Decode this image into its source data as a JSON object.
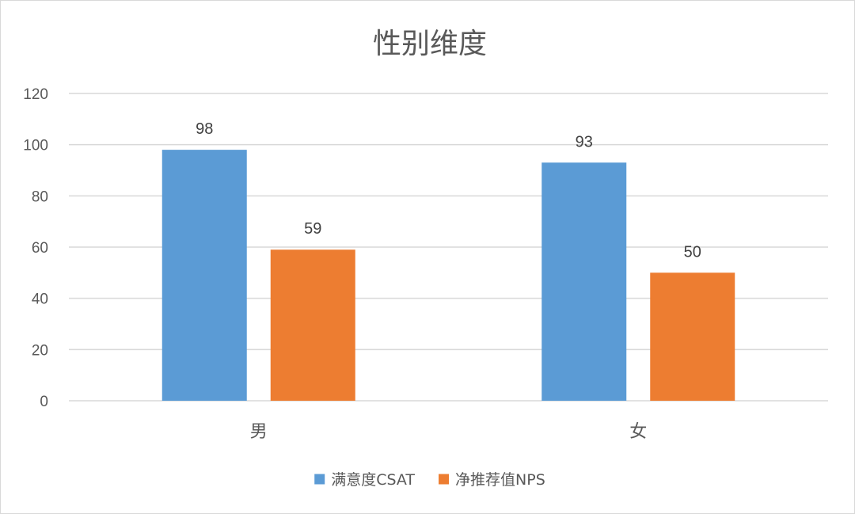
{
  "chart_data": {
    "type": "bar",
    "title": "性别维度",
    "categories": [
      "男",
      "女"
    ],
    "series": [
      {
        "name": "满意度CSAT",
        "values": [
          98,
          93
        ],
        "color": "#5b9bd5"
      },
      {
        "name": "净推荐值NPS",
        "values": [
          59,
          50
        ],
        "color": "#ed7d31"
      }
    ],
    "ylim": [
      0,
      120
    ],
    "yticks": [
      0,
      20,
      40,
      60,
      80,
      100,
      120
    ],
    "grid": true,
    "data_labels": true,
    "legend_position": "bottom"
  }
}
